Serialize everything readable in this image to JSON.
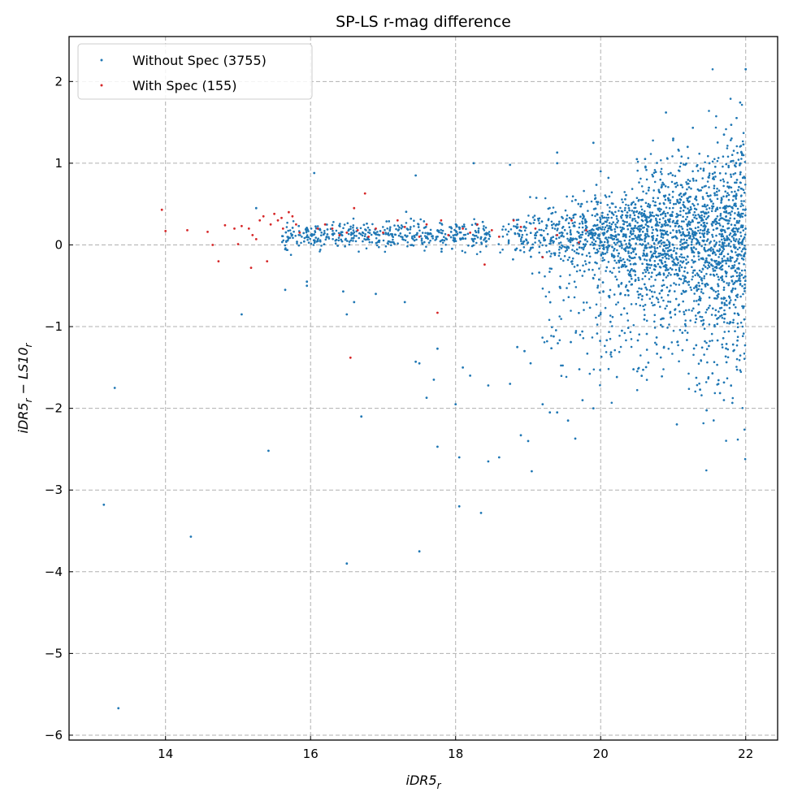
{
  "chart_data": {
    "type": "scatter",
    "title": "SP-LS r-mag difference",
    "xlabel": "iDR5",
    "xlabel_sub": "r",
    "ylabel_parts": [
      "iDR5",
      "r",
      " − LS10",
      "r"
    ],
    "xlim": [
      12.67,
      22.44
    ],
    "ylim": [
      -6.06,
      2.55
    ],
    "xticks": [
      14,
      16,
      18,
      20,
      22
    ],
    "yticks": [
      2,
      1,
      0,
      -1,
      -2,
      -3,
      -4,
      -5,
      -6
    ],
    "xtick_labels": [
      "14",
      "16",
      "18",
      "20",
      "22"
    ],
    "ytick_labels": [
      "2",
      "1",
      "0",
      "−1",
      "−2",
      "−3",
      "−4",
      "−5",
      "−6"
    ],
    "grid": true,
    "legend_position": "top-left",
    "series": [
      {
        "name": "Without Spec (3755)",
        "color": "#1f77b4",
        "count": 3755,
        "bulk_model": {
          "x_min": 15.6,
          "x_peak": 20.0,
          "x_max": 22.0,
          "y_center": 0.12,
          "n_generated": 3550
        },
        "points": [
          [
            13.15,
            -3.18
          ],
          [
            13.3,
            -1.75
          ],
          [
            13.35,
            -5.67
          ],
          [
            14.35,
            -3.57
          ],
          [
            15.05,
            -0.85
          ],
          [
            15.42,
            -2.52
          ],
          [
            16.5,
            -3.9
          ],
          [
            17.5,
            -3.75
          ],
          [
            18.05,
            -3.2
          ],
          [
            18.35,
            -3.28
          ],
          [
            16.7,
            -2.1
          ],
          [
            17.75,
            -2.47
          ],
          [
            18.05,
            -2.6
          ],
          [
            18.45,
            -2.65
          ],
          [
            18.6,
            -2.6
          ],
          [
            19.05,
            -2.77
          ],
          [
            15.65,
            -0.55
          ],
          [
            15.95,
            -0.5
          ],
          [
            15.95,
            -0.45
          ],
          [
            16.45,
            -0.57
          ],
          [
            16.5,
            -0.85
          ],
          [
            16.6,
            -0.7
          ],
          [
            16.9,
            -0.6
          ],
          [
            17.3,
            -0.7
          ],
          [
            17.45,
            -1.43
          ],
          [
            17.5,
            -1.45
          ],
          [
            17.6,
            -1.87
          ],
          [
            17.7,
            -1.65
          ],
          [
            17.75,
            -1.27
          ],
          [
            18.0,
            -1.95
          ],
          [
            18.1,
            -1.5
          ],
          [
            18.2,
            -1.6
          ],
          [
            18.45,
            -1.72
          ],
          [
            18.75,
            -1.7
          ],
          [
            18.9,
            -2.33
          ],
          [
            19.0,
            -2.4
          ],
          [
            19.3,
            -2.05
          ],
          [
            19.4,
            -2.05
          ],
          [
            19.55,
            -2.15
          ],
          [
            19.65,
            -2.37
          ],
          [
            19.75,
            -1.9
          ],
          [
            19.9,
            -2.0
          ],
          [
            18.85,
            -1.25
          ],
          [
            18.95,
            -1.3
          ],
          [
            19.2,
            -1.95
          ],
          [
            20.9,
            1.62
          ],
          [
            22.0,
            2.15
          ],
          [
            19.9,
            1.25
          ],
          [
            21.0,
            1.3
          ],
          [
            21.8,
            1.47
          ],
          [
            21.7,
            1.35
          ],
          [
            18.25,
            1.0
          ],
          [
            18.75,
            0.98
          ],
          [
            19.4,
            1.13
          ],
          [
            19.4,
            1.0
          ],
          [
            16.05,
            0.88
          ],
          [
            17.45,
            0.85
          ],
          [
            15.25,
            0.45
          ],
          [
            20.0,
            0.9
          ],
          [
            20.5,
            1.05
          ],
          [
            21.2,
            1.2
          ],
          [
            21.5,
            1.0
          ],
          [
            21.95,
            1.1
          ]
        ]
      },
      {
        "name": "With Spec (155)",
        "color": "#d62728",
        "count": 155,
        "points": [
          [
            13.95,
            0.43
          ],
          [
            14.0,
            0.17
          ],
          [
            14.3,
            0.18
          ],
          [
            14.58,
            0.16
          ],
          [
            14.65,
            0.0
          ],
          [
            14.73,
            -0.2
          ],
          [
            14.82,
            0.24
          ],
          [
            14.95,
            0.2
          ],
          [
            15.0,
            0.01
          ],
          [
            15.05,
            0.23
          ],
          [
            15.15,
            0.2
          ],
          [
            15.18,
            -0.28
          ],
          [
            15.2,
            0.12
          ],
          [
            15.25,
            0.07
          ],
          [
            15.3,
            0.3
          ],
          [
            15.35,
            0.35
          ],
          [
            15.4,
            -0.2
          ],
          [
            15.45,
            0.25
          ],
          [
            15.5,
            0.38
          ],
          [
            15.55,
            0.3
          ],
          [
            15.6,
            0.33
          ],
          [
            15.62,
            0.2
          ],
          [
            15.7,
            0.4
          ],
          [
            15.75,
            0.35
          ],
          [
            15.8,
            0.25
          ],
          [
            15.85,
            0.15
          ],
          [
            16.1,
            0.2
          ],
          [
            16.2,
            0.25
          ],
          [
            16.3,
            0.2
          ],
          [
            16.4,
            0.12
          ],
          [
            16.5,
            0.15
          ],
          [
            16.6,
            0.45
          ],
          [
            16.65,
            0.18
          ],
          [
            16.75,
            0.63
          ],
          [
            16.8,
            0.1
          ],
          [
            16.9,
            0.2
          ],
          [
            17.0,
            0.15
          ],
          [
            17.2,
            0.3
          ],
          [
            17.3,
            0.22
          ],
          [
            17.5,
            0.1
          ],
          [
            17.6,
            0.25
          ],
          [
            17.75,
            -0.83
          ],
          [
            16.55,
            -1.38
          ],
          [
            17.8,
            0.3
          ],
          [
            17.9,
            0.12
          ],
          [
            18.1,
            0.2
          ],
          [
            18.2,
            0.15
          ],
          [
            18.3,
            0.25
          ],
          [
            18.4,
            -0.24
          ],
          [
            18.5,
            0.18
          ],
          [
            18.6,
            0.1
          ],
          [
            18.8,
            0.3
          ],
          [
            18.9,
            0.22
          ],
          [
            19.1,
            0.2
          ],
          [
            19.2,
            -0.15
          ],
          [
            19.4,
            0.12
          ],
          [
            19.6,
            0.3
          ],
          [
            19.7,
            0.03
          ],
          [
            19.8,
            0.18
          ]
        ]
      }
    ]
  }
}
